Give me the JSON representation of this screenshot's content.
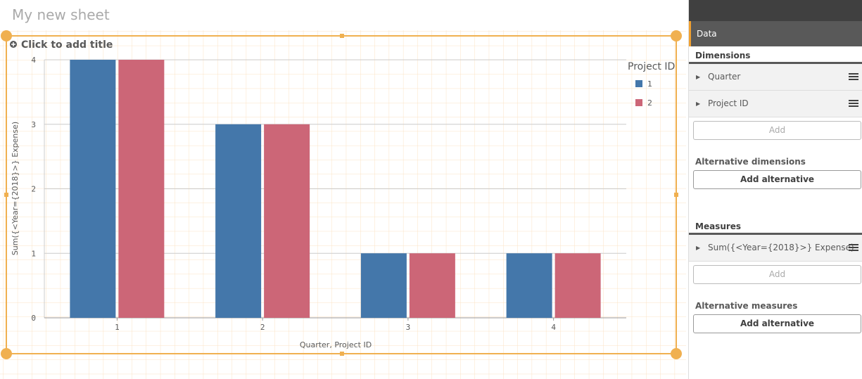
{
  "sheet_title": "My new sheet",
  "chart_data": {
    "type": "bar",
    "title": "Click to add title",
    "categories": [
      "1",
      "2",
      "3",
      "4"
    ],
    "series": [
      {
        "name": "1",
        "color": "#4477aa",
        "values": [
          4,
          3,
          1,
          1
        ]
      },
      {
        "name": "2",
        "color": "#cc6677",
        "values": [
          4,
          3,
          1,
          1
        ]
      }
    ],
    "ylim": [
      0,
      4
    ],
    "yticks": [
      0,
      1,
      2,
      3,
      4
    ],
    "grid": true,
    "xlabel": "Quarter, Project ID",
    "ylabel": "Sum({<Year={2018}>} Expense)",
    "legend_title": "Project ID",
    "legend": "right"
  },
  "panel": {
    "tab": "Data",
    "dimensions": {
      "heading": "Dimensions",
      "items": [
        "Quarter",
        "Project ID"
      ],
      "add": "Add",
      "alternative_heading": "Alternative dimensions",
      "add_alternative": "Add alternative"
    },
    "measures": {
      "heading": "Measures",
      "items": [
        "Sum({<Year={2018}>} Expense)"
      ],
      "add": "Add",
      "alternative_heading": "Alternative measures",
      "add_alternative": "Add alternative"
    }
  }
}
